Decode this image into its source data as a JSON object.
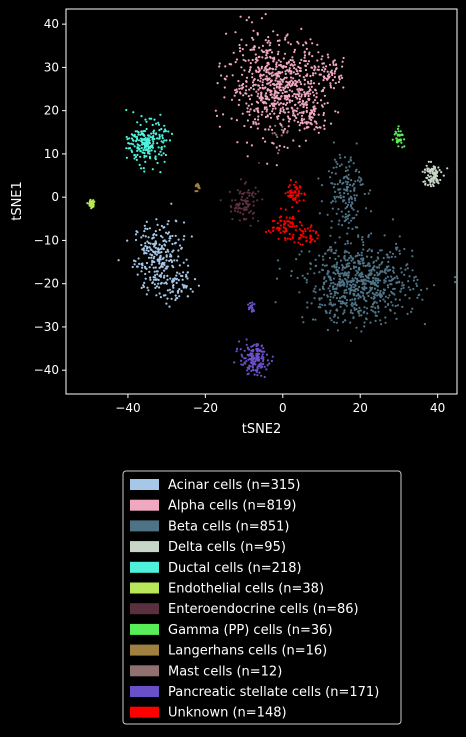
{
  "chart_data": {
    "type": "scatter",
    "title": "",
    "xlabel": "tSNE2",
    "ylabel": "tSNE1",
    "xlim": [
      -56,
      45
    ],
    "ylim": [
      -45.5,
      43.5
    ],
    "xticks": [
      -40,
      -20,
      0,
      20,
      40
    ],
    "yticks": [
      -40,
      -30,
      -20,
      -10,
      0,
      10,
      20,
      30,
      40
    ],
    "grid": false,
    "legend_position": "below-center",
    "background": "#000000",
    "series": [
      {
        "name": "Acinar cells (n=315)",
        "color": "#a6c8e8",
        "n": 315,
        "clusters": [
          {
            "cx": -32,
            "cy": -14,
            "sx": 3.2,
            "sy": 4.2,
            "count": 265
          },
          {
            "cx": -27,
            "cy": -21,
            "sx": 2.2,
            "sy": 1.8,
            "count": 50
          }
        ]
      },
      {
        "name": "Alpha cells (n=819)",
        "color": "#f0a8c0",
        "n": 819,
        "clusters": [
          {
            "cx": -2,
            "cy": 26,
            "sx": 6.0,
            "sy": 5.5,
            "count": 650
          },
          {
            "cx": 7,
            "cy": 20,
            "sx": 2.5,
            "sy": 3.0,
            "count": 110
          },
          {
            "cx": 12,
            "cy": 29,
            "sx": 2.0,
            "sy": 1.5,
            "count": 59
          }
        ]
      },
      {
        "name": "Beta cells (n=851)",
        "color": "#4e7386",
        "n": 851,
        "clusters": [
          {
            "cx": 20,
            "cy": -20,
            "sx": 7.0,
            "sy": 4.5,
            "count": 700
          },
          {
            "cx": 16,
            "cy": 2,
            "sx": 2.5,
            "sy": 4.5,
            "count": 151
          }
        ]
      },
      {
        "name": "Delta cells (n=95)",
        "color": "#c8d6c8",
        "n": 95,
        "clusters": [
          {
            "cx": 38.5,
            "cy": 5,
            "sx": 1.2,
            "sy": 1.4,
            "count": 95
          }
        ]
      },
      {
        "name": "Ductal cells (n=218)",
        "color": "#4ef2dc",
        "n": 218,
        "clusters": [
          {
            "cx": -35,
            "cy": 12.5,
            "sx": 2.3,
            "sy": 2.4,
            "count": 218
          }
        ]
      },
      {
        "name": "Endothelial cells (n=38)",
        "color": "#b8e858",
        "n": 38,
        "clusters": [
          {
            "cx": -49.5,
            "cy": -1.5,
            "sx": 0.4,
            "sy": 0.5,
            "count": 38
          }
        ]
      },
      {
        "name": "Enteroendocrine cells (n=86)",
        "color": "#5a3040",
        "n": 86,
        "clusters": [
          {
            "cx": -10,
            "cy": -1.5,
            "sx": 2.0,
            "sy": 2.2,
            "count": 86
          }
        ]
      },
      {
        "name": "Gamma (PP) cells (n=36)",
        "color": "#58ee58",
        "n": 36,
        "clusters": [
          {
            "cx": 30,
            "cy": 14,
            "sx": 0.6,
            "sy": 1.0,
            "count": 36
          }
        ]
      },
      {
        "name": "Langerhans cells (n=16)",
        "color": "#a08040",
        "n": 16,
        "clusters": [
          {
            "cx": -22,
            "cy": 2.5,
            "sx": 0.4,
            "sy": 0.4,
            "count": 16
          }
        ]
      },
      {
        "name": "Mast cells (n=12)",
        "color": "#907070",
        "n": 12,
        "clusters": [
          {
            "cx": 0,
            "cy": 14,
            "sx": 2.5,
            "sy": 2.0,
            "count": 12
          }
        ]
      },
      {
        "name": "Pancreatic stellate cells (n=171)",
        "color": "#6a50c8",
        "n": 171,
        "clusters": [
          {
            "cx": -7.5,
            "cy": -37.5,
            "sx": 1.8,
            "sy": 1.8,
            "count": 151
          },
          {
            "cx": -8,
            "cy": -25.5,
            "sx": 0.4,
            "sy": 0.6,
            "count": 20
          }
        ]
      },
      {
        "name": "Unknown (n=148)",
        "color": "#ff0000",
        "n": 148,
        "clusters": [
          {
            "cx": 0,
            "cy": -6.5,
            "sx": 2.0,
            "sy": 1.5,
            "count": 60
          },
          {
            "cx": 6,
            "cy": -9,
            "sx": 1.5,
            "sy": 1.2,
            "count": 40
          },
          {
            "cx": 3.5,
            "cy": 1,
            "sx": 1.2,
            "sy": 1.3,
            "count": 48
          }
        ]
      }
    ]
  }
}
